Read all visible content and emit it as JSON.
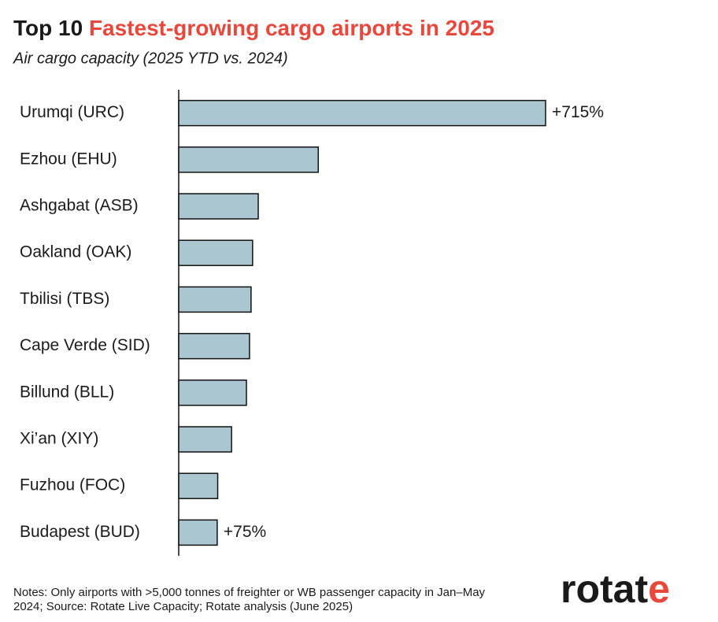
{
  "chart_data": {
    "type": "bar",
    "orientation": "horizontal",
    "title": {
      "lead": "Top 10",
      "highlight": "Fastest-growing cargo airports in 2025"
    },
    "subtitle": "Air cargo capacity (2025 YTD vs. 2024)",
    "categories": [
      "Urumqi (URC)",
      "Ezhou (EHU)",
      "Ashgabat (ASB)",
      "Oakland (OAK)",
      "Tbilisi (TBS)",
      "Cape Verde (SID)",
      "Billund (BLL)",
      "Xi’an (XIY)",
      "Fuzhou (FOC)",
      "Budapest (BUD)"
    ],
    "values": [
      715,
      272,
      155,
      144,
      141,
      138,
      132,
      103,
      76,
      75
    ],
    "value_labels": [
      "+715%",
      null,
      null,
      null,
      null,
      null,
      null,
      null,
      null,
      "+75%"
    ],
    "color": "#a9c6d1",
    "highlight_color": "#e8483b",
    "notes": [
      "Notes: Only airports with >5,000 tonnes of freighter or WB passenger capacity in Jan–May",
      "2024; Source: Rotate Live Capacity; Rotate analysis (June 2025)"
    ],
    "logo": {
      "text": "rotat",
      "accent": "e"
    }
  }
}
